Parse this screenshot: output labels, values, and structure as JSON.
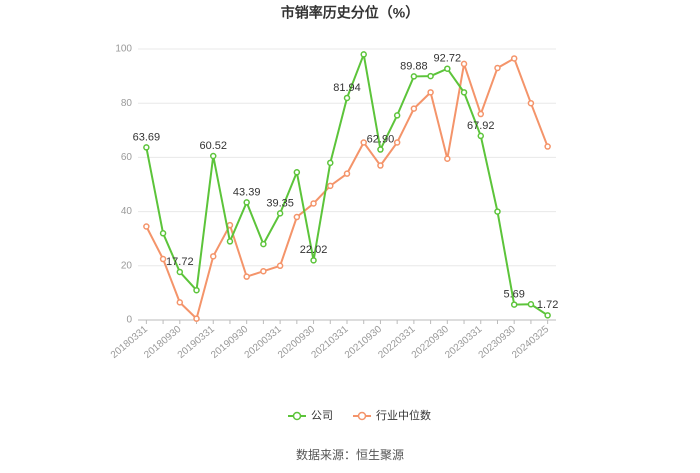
{
  "chart_data": {
    "type": "line",
    "title": "市销率历史分位（%）",
    "source": "数据来源：恒生聚源",
    "categories": [
      "20180331",
      null,
      "20180930",
      null,
      "20190331",
      null,
      "20190930",
      null,
      "20200331",
      null,
      "20200930",
      null,
      "20210331",
      null,
      "20210930",
      null,
      "20220331",
      null,
      "20220930",
      null,
      "20230331",
      null,
      "20230930",
      null,
      "20240325"
    ],
    "series": [
      {
        "name": "公司",
        "color": "#5cc43a",
        "values": [
          63.69,
          32,
          17.72,
          11,
          60.52,
          29,
          43.39,
          28,
          39.35,
          54.5,
          22.02,
          58,
          81.94,
          98,
          62.9,
          75.5,
          89.88,
          90,
          92.72,
          84,
          67.92,
          40,
          5.69,
          5.8,
          1.72
        ],
        "value_labels": [
          "63.69",
          null,
          "17.72",
          null,
          "60.52",
          null,
          "43.39",
          null,
          "39.35",
          null,
          "22.02",
          null,
          "81.94",
          null,
          "62.90",
          null,
          "89.88",
          null,
          "92.72",
          null,
          "67.92",
          null,
          "5.69",
          null,
          "1.72"
        ]
      },
      {
        "name": "行业中位数",
        "color": "#f4946a",
        "values": [
          34.5,
          22.5,
          6.5,
          0.5,
          23.5,
          35,
          16,
          18,
          20,
          38,
          43,
          49.5,
          54,
          65.5,
          57,
          65.5,
          78,
          84,
          59.5,
          94.5,
          76,
          93,
          96.5,
          80,
          64
        ]
      }
    ],
    "ylim": [
      0,
      100
    ],
    "yticks": [
      0,
      20,
      40,
      60,
      80,
      100
    ],
    "grid": true
  }
}
